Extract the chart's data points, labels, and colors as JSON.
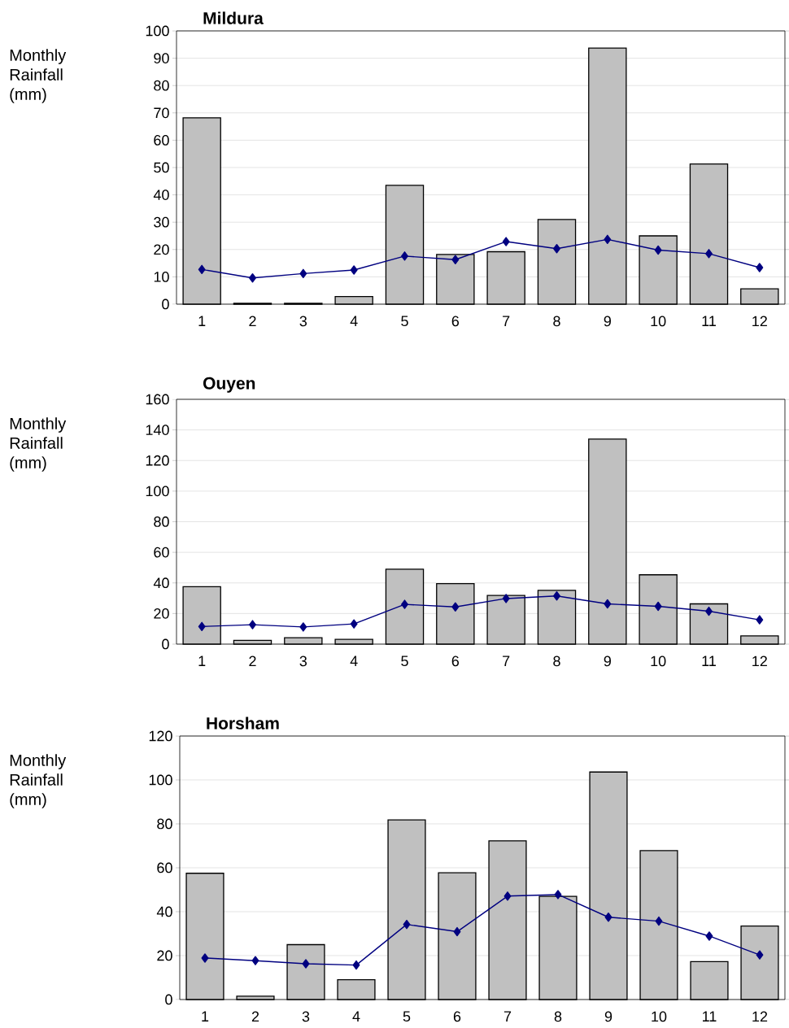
{
  "chart_data": [
    {
      "type": "bar",
      "title": "Mildura",
      "ylabel": "Monthly Rainfall (mm)",
      "categories": [
        "1",
        "2",
        "3",
        "4",
        "5",
        "6",
        "7",
        "8",
        "9",
        "10",
        "11",
        "12"
      ],
      "ylim": [
        0,
        100
      ],
      "yticks": [
        0,
        10,
        20,
        30,
        40,
        50,
        60,
        70,
        80,
        90,
        100
      ],
      "grid": "y",
      "marker": "diamond",
      "series": [
        {
          "color": "#c0c0c0",
          "values": [
            68.2,
            0.3,
            0.3,
            2.8,
            43.5,
            18.2,
            19.2,
            31,
            93.7,
            25,
            51.3,
            5.6
          ]
        },
        {
          "type": "line",
          "color": "#000080",
          "values": [
            12.7,
            9.6,
            11.2,
            12.5,
            17.6,
            16.3,
            22.9,
            20.3,
            23.7,
            19.8,
            18.5,
            13.4
          ]
        }
      ]
    },
    {
      "type": "bar",
      "title": "Ouyen",
      "ylabel": "Monthly Rainfall (mm)",
      "categories": [
        "1",
        "2",
        "3",
        "4",
        "5",
        "6",
        "7",
        "8",
        "9",
        "10",
        "11",
        "12"
      ],
      "ylim": [
        0,
        160
      ],
      "yticks": [
        0,
        20,
        40,
        60,
        80,
        100,
        120,
        140,
        160
      ],
      "grid": "y",
      "marker": "diamond",
      "series": [
        {
          "color": "#c0c0c0",
          "values": [
            37.5,
            2.5,
            4.2,
            3.1,
            49,
            39.5,
            31.8,
            35.2,
            134,
            45.3,
            26.3,
            5.4
          ]
        },
        {
          "type": "line",
          "color": "#000080",
          "values": [
            11.5,
            12.7,
            11.2,
            13.2,
            26,
            24.3,
            29.8,
            31.5,
            26.3,
            24.7,
            21.5,
            15.9
          ]
        }
      ]
    },
    {
      "type": "bar",
      "title": "Horsham",
      "ylabel": "Monthly Rainfall (mm)",
      "categories": [
        "1",
        "2",
        "3",
        "4",
        "5",
        "6",
        "7",
        "8",
        "9",
        "10",
        "11",
        "12"
      ],
      "ylim": [
        0,
        120
      ],
      "yticks": [
        0,
        20,
        40,
        60,
        80,
        100,
        120
      ],
      "grid": "y",
      "marker": "diamond",
      "series": [
        {
          "color": "#c0c0c0",
          "values": [
            57.5,
            1.5,
            25,
            9,
            81.8,
            57.7,
            72.3,
            47,
            103.6,
            67.8,
            17.3,
            33.5
          ]
        },
        {
          "type": "line",
          "color": "#000080",
          "values": [
            18.9,
            17.7,
            16.3,
            15.7,
            34.2,
            30.9,
            47.1,
            47.8,
            37.5,
            35.7,
            28.9,
            20.3
          ]
        }
      ]
    }
  ]
}
